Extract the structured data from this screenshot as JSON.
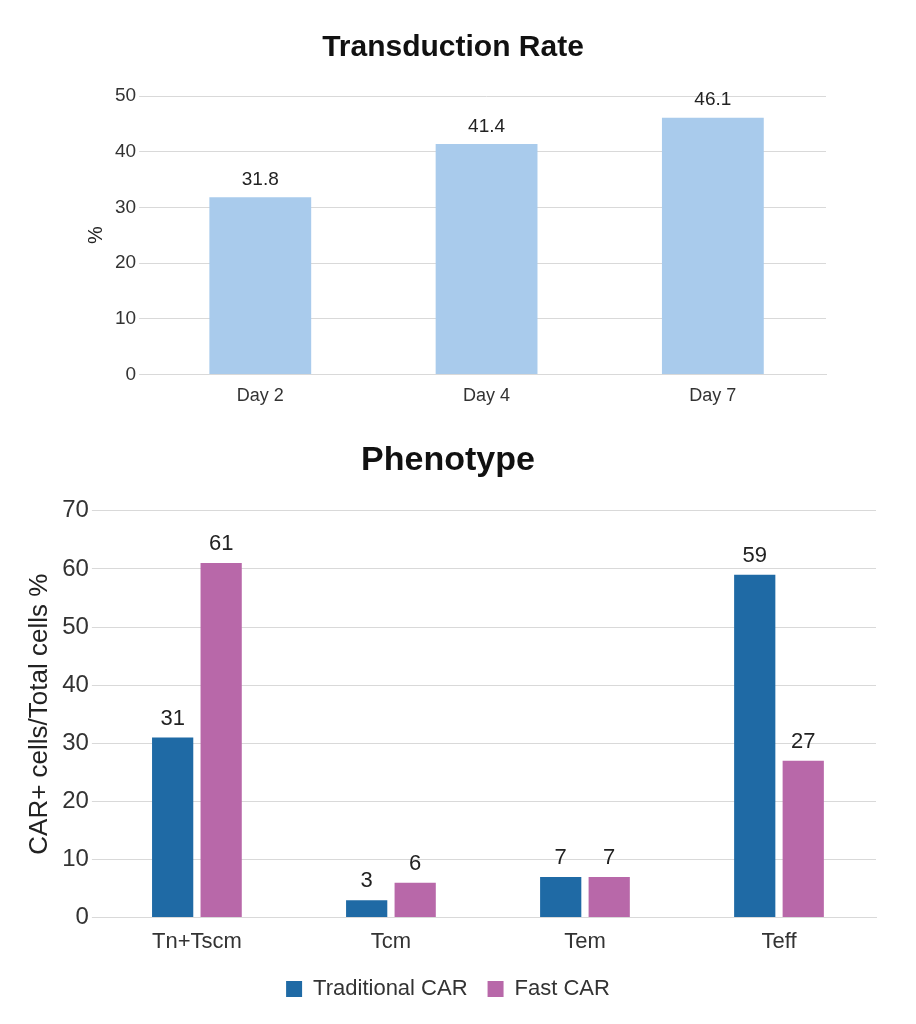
{
  "chart_data": [
    {
      "type": "bar",
      "title": "Transduction Rate",
      "categories": [
        "Day 2",
        "Day 4",
        "Day 7"
      ],
      "values": [
        31.8,
        41.4,
        46.1
      ],
      "color": "#a9cbec",
      "y_label": "%",
      "ylim": [
        0,
        50
      ],
      "yticks": [
        0,
        10,
        20,
        30,
        40,
        50
      ],
      "grid": true,
      "data_labels": true
    },
    {
      "type": "bar",
      "title": "Phenotype",
      "categories": [
        "Tn+Tscm",
        "Tcm",
        "Tem",
        "Teff"
      ],
      "series": [
        {
          "name": "Traditional CAR",
          "color": "#1f6aa5",
          "values": [
            31,
            3,
            7,
            59
          ]
        },
        {
          "name": "Fast CAR",
          "color": "#b868a9",
          "values": [
            61,
            6,
            7,
            27
          ]
        }
      ],
      "y_label": "CAR+ cells/Total cells %",
      "ylim": [
        0,
        70
      ],
      "yticks": [
        0,
        10,
        20,
        30,
        40,
        50,
        60,
        70
      ],
      "grid": true,
      "legend": "bottom",
      "data_labels": true
    }
  ]
}
